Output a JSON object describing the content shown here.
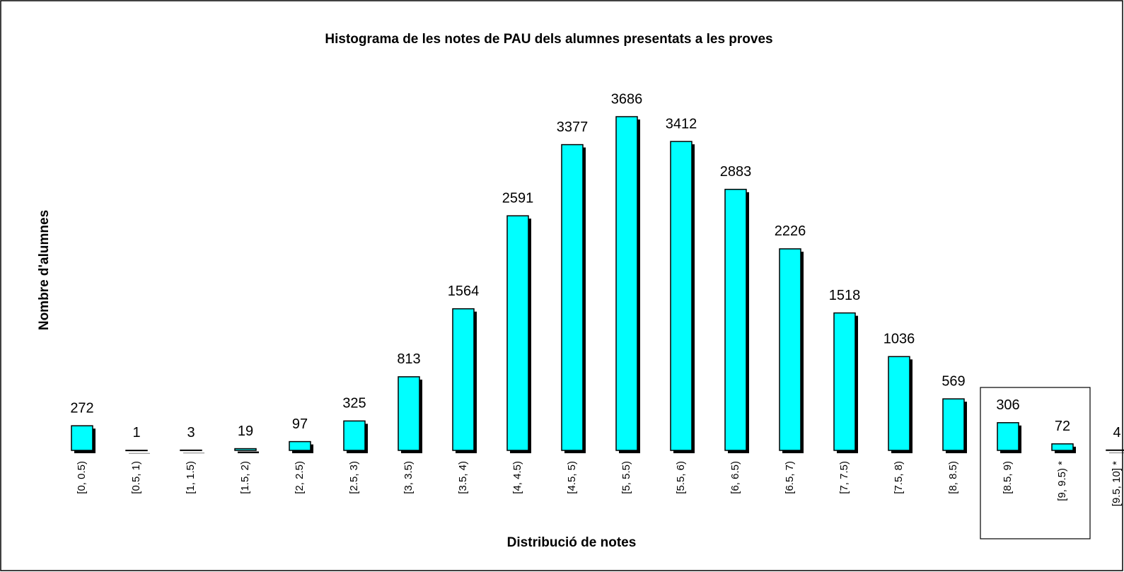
{
  "chart_data": {
    "type": "bar",
    "title": "Histograma de les notes de PAU dels alumnes presentats a les proves",
    "x_label": "Distribució de notes",
    "y_label": "Nombre d'alumnes",
    "categories": [
      "[0, 0.5)",
      "[0.5, 1)",
      "[1, 1.5)",
      "[1.5, 2)",
      "[2, 2.5)",
      "[2.5, 3)",
      "[3, 3.5)",
      "[3.5, 4)",
      "[4, 4.5)",
      "[4.5, 5)",
      "[5, 5.5)",
      "[5.5, 6)",
      "[6, 6.5)",
      "[6.5, 7)",
      "[7, 7.5)",
      "[7.5, 8)",
      "[8, 8.5)",
      "[8.5, 9)",
      "[9, 9.5) *",
      "[9.5, 10] *"
    ],
    "values": [
      272,
      1,
      3,
      19,
      97,
      325,
      813,
      1564,
      2591,
      3377,
      3686,
      3412,
      2883,
      2226,
      1518,
      1036,
      569,
      306,
      72,
      4
    ],
    "color": "#00ffff"
  }
}
